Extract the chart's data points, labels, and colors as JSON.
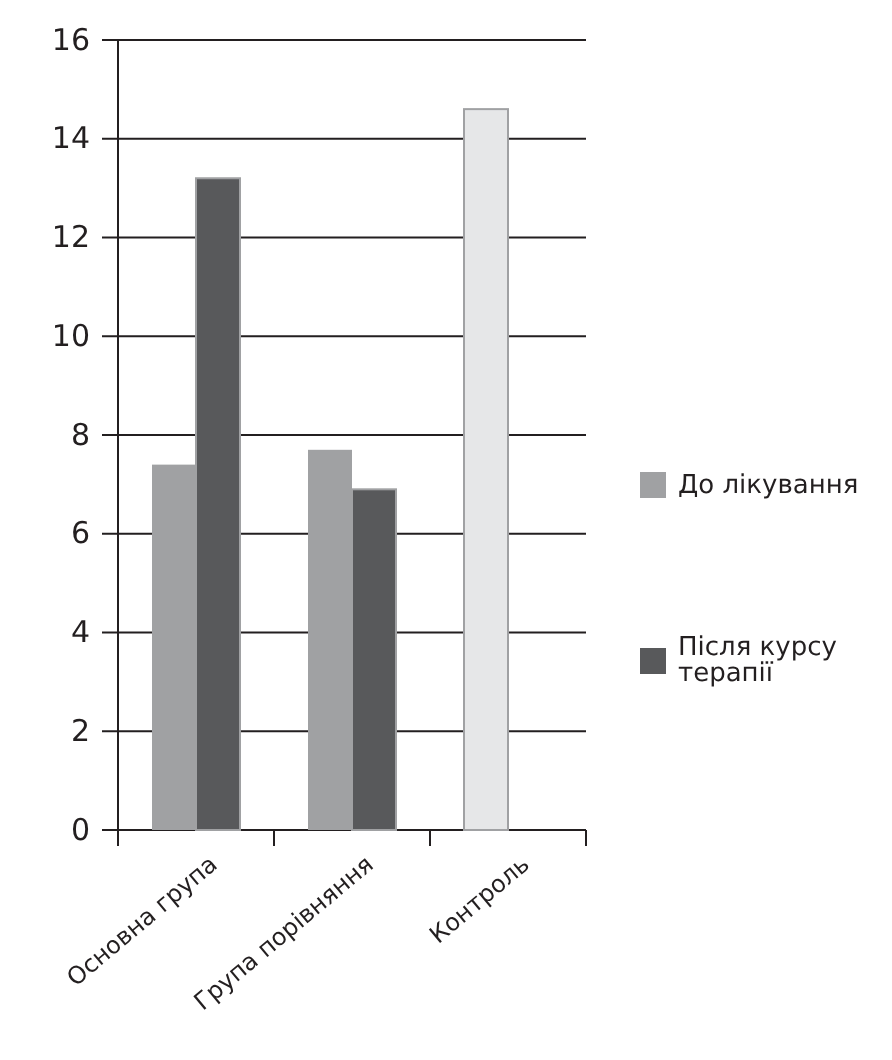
{
  "chart_data": {
    "type": "bar",
    "categories": [
      "Основна група",
      "Група порівняння",
      "Контроль"
    ],
    "series": [
      {
        "name": "До лікування",
        "color": "#a0a1a3",
        "colors": [
          "#a0a1a3",
          "#a0a1a3",
          "#e6e7e8"
        ],
        "values": [
          7.4,
          7.7,
          14.6
        ]
      },
      {
        "name": "Після курсу терапії",
        "color": "#58595b",
        "values": [
          13.2,
          6.9,
          null
        ]
      }
    ],
    "ylim": [
      0,
      16
    ],
    "yticks": [
      0,
      2,
      4,
      6,
      8,
      10,
      12,
      14,
      16
    ],
    "grid": "y",
    "legend": "right"
  }
}
